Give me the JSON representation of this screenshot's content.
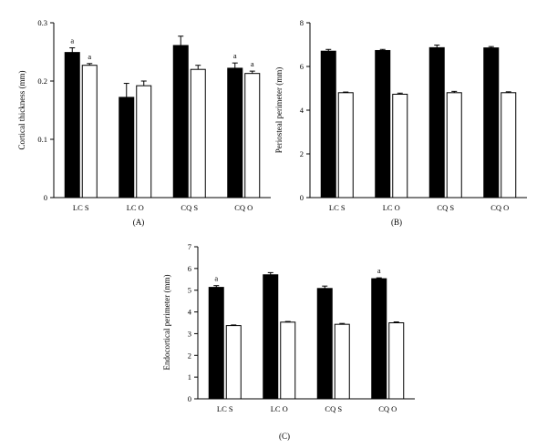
{
  "colors": {
    "filled": "#000000",
    "open": "#ffffff",
    "axis": "#000000"
  },
  "chart_data": [
    {
      "type": "bar",
      "panel_label": "(A)",
      "ylabel": "Cortical thickness (mm)",
      "categories": [
        "LC S",
        "LC O",
        "CQ S",
        "CQ O"
      ],
      "ylim": [
        0,
        0.3
      ],
      "yticks": [
        "0",
        "0.1",
        "0.2",
        "0.3"
      ],
      "ytick_values": [
        0,
        0.1,
        0.2,
        0.3
      ],
      "grid": false,
      "series": [
        {
          "fill": "filled",
          "values": [
            0.249,
            0.172,
            0.261,
            0.222
          ],
          "errors": [
            0.008,
            0.024,
            0.016,
            0.009
          ]
        },
        {
          "fill": "open",
          "values": [
            0.227,
            0.192,
            0.22,
            0.213
          ],
          "errors": [
            0.003,
            0.008,
            0.007,
            0.004
          ]
        }
      ],
      "annotations": [
        {
          "category": 0,
          "series": 0,
          "text": "a"
        },
        {
          "category": 0,
          "series": 1,
          "text": "a"
        },
        {
          "category": 3,
          "series": 0,
          "text": "a"
        },
        {
          "category": 3,
          "series": 1,
          "text": "a"
        }
      ]
    },
    {
      "type": "bar",
      "panel_label": "(B)",
      "ylabel": "Periosteal perimeter (mm)",
      "categories": [
        "LC S",
        "LC O",
        "CQ S",
        "CQ O"
      ],
      "ylim": [
        0,
        8
      ],
      "yticks": [
        "0",
        "2",
        "4",
        "6",
        "8"
      ],
      "ytick_values": [
        0,
        2,
        4,
        6,
        8
      ],
      "grid": false,
      "series": [
        {
          "fill": "filled",
          "values": [
            6.7,
            6.73,
            6.86,
            6.85
          ],
          "errors": [
            0.08,
            0.05,
            0.12,
            0.06
          ]
        },
        {
          "fill": "open",
          "values": [
            4.8,
            4.73,
            4.8,
            4.8
          ],
          "errors": [
            0.03,
            0.05,
            0.06,
            0.04
          ]
        }
      ],
      "annotations": []
    },
    {
      "type": "bar",
      "panel_label": "(C)",
      "ylabel": "Endocortical perimeter (mm)",
      "categories": [
        "LC S",
        "LC O",
        "CQ S",
        "CQ O"
      ],
      "ylim": [
        0,
        7
      ],
      "yticks": [
        "0",
        "1",
        "2",
        "3",
        "4",
        "5",
        "6",
        "7"
      ],
      "ytick_values": [
        0,
        1,
        2,
        3,
        4,
        5,
        6,
        7
      ],
      "grid": false,
      "series": [
        {
          "fill": "filled",
          "values": [
            5.13,
            5.71,
            5.08,
            5.53
          ],
          "errors": [
            0.08,
            0.1,
            0.11,
            0.04
          ]
        },
        {
          "fill": "open",
          "values": [
            3.37,
            3.53,
            3.43,
            3.5
          ],
          "errors": [
            0.03,
            0.03,
            0.04,
            0.04
          ]
        }
      ],
      "annotations": [
        {
          "category": 0,
          "series": 0,
          "text": "a"
        },
        {
          "category": 3,
          "series": 0,
          "text": "a"
        }
      ]
    }
  ]
}
